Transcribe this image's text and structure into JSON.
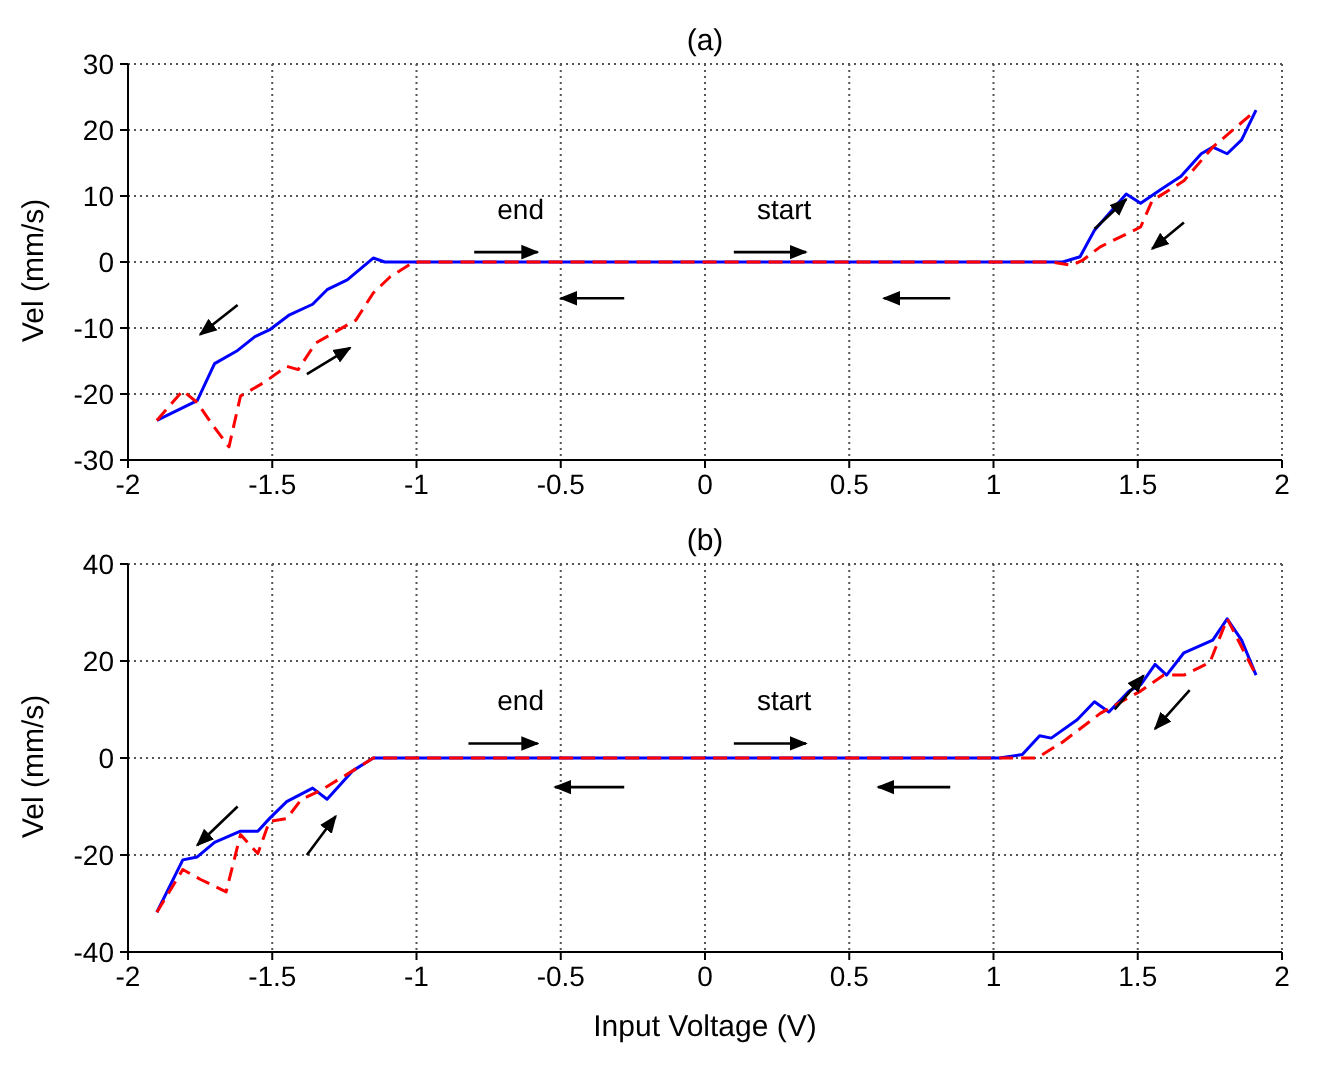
{
  "chart_data": [
    {
      "type": "line",
      "title": "(a)",
      "ylabel": "Vel (mm/s)",
      "xlim": [
        -2,
        2
      ],
      "xticks": [
        -2,
        -1.5,
        -1,
        -0.5,
        0,
        0.5,
        1,
        1.5,
        2
      ],
      "ylim": [
        -30,
        30
      ],
      "yticks": [
        -30,
        -20,
        -10,
        0,
        10,
        20,
        30
      ],
      "grid": true,
      "annotations": [
        "end",
        "start"
      ],
      "series": [
        {
          "color": "#0000ff",
          "line_style": "solid",
          "x": [
            -1.9,
            -1.76,
            -1.7,
            -1.62,
            -1.56,
            -1.51,
            -1.44,
            -1.36,
            -1.31,
            -1.24,
            -1.15,
            -1.11,
            -1.0,
            1.24,
            1.3,
            1.35,
            1.4,
            1.46,
            1.51,
            1.58,
            1.65,
            1.72,
            1.76,
            1.81,
            1.86,
            1.91
          ],
          "values": [
            -24,
            -21,
            -15.4,
            -13.4,
            -11.3,
            -10.3,
            -8,
            -6.4,
            -4.2,
            -2.7,
            0.6,
            0,
            0,
            0,
            0.8,
            4.8,
            7.3,
            10.3,
            8.9,
            11,
            13,
            16.4,
            17.4,
            16.4,
            18.5,
            23
          ]
        },
        {
          "color": "#ff0000",
          "line_style": "dashed",
          "x": [
            -1.9,
            -1.81,
            -1.76,
            -1.71,
            -1.65,
            -1.61,
            -1.53,
            -1.45,
            -1.41,
            -1.35,
            -1.21,
            -1.15,
            -1.09,
            -1.01,
            1.2,
            1.27,
            1.31,
            1.37,
            1.51,
            1.55,
            1.66,
            1.76,
            1.91
          ],
          "values": [
            -24,
            -19.5,
            -21.3,
            -24.5,
            -28,
            -20.3,
            -18.3,
            -15.8,
            -16.3,
            -12.3,
            -8.8,
            -4.7,
            -2.2,
            0,
            0,
            -0.5,
            0.3,
            2.3,
            5.3,
            9.3,
            12.3,
            17.4,
            23
          ]
        }
      ]
    },
    {
      "type": "line",
      "title": "(b)",
      "xlabel": "Input Voltage (V)",
      "ylabel": "Vel (mm/s)",
      "xlim": [
        -2,
        2
      ],
      "xticks": [
        -2,
        -1.5,
        -1,
        -0.5,
        0,
        0.5,
        1,
        1.5,
        2
      ],
      "ylim": [
        -40,
        40
      ],
      "yticks": [
        -40,
        -20,
        0,
        20,
        40
      ],
      "grid": true,
      "annotations": [
        "end",
        "start"
      ],
      "series": [
        {
          "color": "#0000ff",
          "line_style": "solid",
          "x": [
            -1.9,
            -1.81,
            -1.76,
            -1.7,
            -1.61,
            -1.55,
            -1.51,
            -1.45,
            -1.36,
            -1.31,
            -1.22,
            -1.15,
            1.02,
            1.1,
            1.16,
            1.2,
            1.29,
            1.35,
            1.4,
            1.47,
            1.51,
            1.56,
            1.6,
            1.66,
            1.76,
            1.81,
            1.86,
            1.91
          ],
          "values": [
            -31.8,
            -21,
            -20.4,
            -17.4,
            -15.1,
            -15.1,
            -12.5,
            -9,
            -6.2,
            -8.5,
            -2.6,
            0,
            0,
            0.7,
            4.6,
            4.1,
            7.9,
            11.6,
            9.5,
            13.8,
            15.1,
            19.3,
            17.1,
            21.7,
            24.3,
            28.7,
            24.3,
            17.1
          ]
        },
        {
          "color": "#ff0000",
          "line_style": "dashed",
          "x": [
            -1.9,
            -1.81,
            -1.75,
            -1.66,
            -1.61,
            -1.55,
            -1.51,
            -1.45,
            -1.4,
            -1.33,
            -1.22,
            -1.15,
            1.1,
            1.15,
            1.24,
            1.37,
            1.51,
            1.59,
            1.66,
            1.75,
            1.81,
            1.91
          ],
          "values": [
            -31.8,
            -23,
            -25,
            -27.6,
            -15.8,
            -19.7,
            -13.1,
            -12.5,
            -8.6,
            -6.6,
            -2.6,
            0,
            0,
            0,
            3.3,
            9.2,
            13.8,
            17.1,
            17.1,
            19.7,
            28.7,
            17.1
          ]
        }
      ]
    }
  ]
}
